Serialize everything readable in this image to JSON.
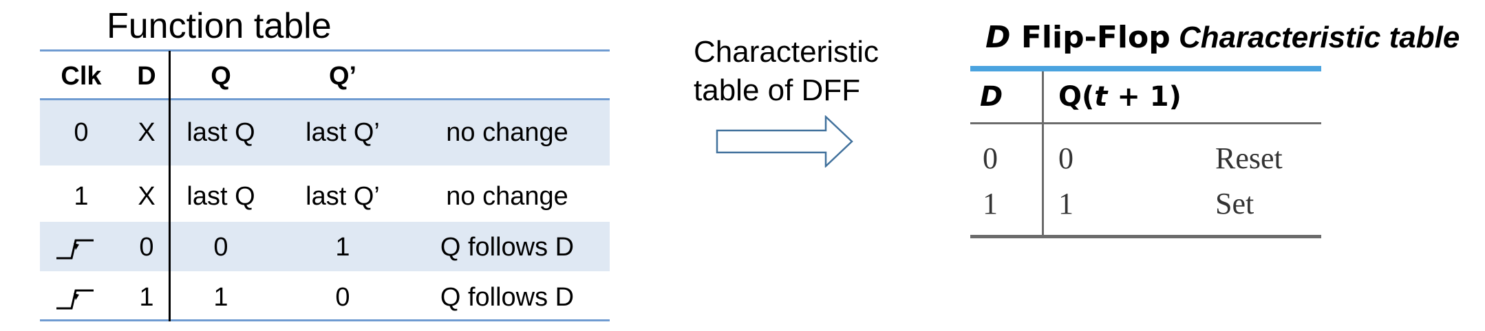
{
  "function_table": {
    "title": "Function table",
    "headers": {
      "clk": "Clk",
      "d": "D",
      "q": "Q",
      "q_prime": "Q’",
      "note": ""
    },
    "rows": [
      {
        "clk": "0",
        "d": "X",
        "q": "last Q",
        "q_prime": "last Q’",
        "note": "no change",
        "shaded": true
      },
      {
        "clk": "1",
        "d": "X",
        "q": "last Q",
        "q_prime": "last Q’",
        "note": "no change",
        "shaded": false
      },
      {
        "clk_icon": "rising-edge-icon",
        "d": "0",
        "q": "0",
        "q_prime": "1",
        "note": "Q follows D",
        "shaded": true
      },
      {
        "clk_icon": "rising-edge-icon",
        "d": "1",
        "q": "1",
        "q_prime": "0",
        "note": "Q follows D",
        "shaded": false
      }
    ],
    "colors": {
      "rule": "#6f9bd1",
      "band": "#dfe8f3"
    }
  },
  "annotation": {
    "line1": "Characteristic",
    "line2": "table of DFF",
    "arrow_icon": "right-arrow-icon"
  },
  "characteristic_table": {
    "title_d": "D",
    "title_mid": "Flip-Flop",
    "title_tail": "Characteristic table",
    "headers": {
      "d": "D",
      "next": "Q(t + 1)"
    },
    "rows": [
      {
        "d": "0",
        "next": "0",
        "label": "Reset"
      },
      {
        "d": "1",
        "next": "1",
        "label": "Set"
      }
    ],
    "colors": {
      "top_bar": "#4aa3df",
      "rules": "#6b6b6b"
    }
  }
}
